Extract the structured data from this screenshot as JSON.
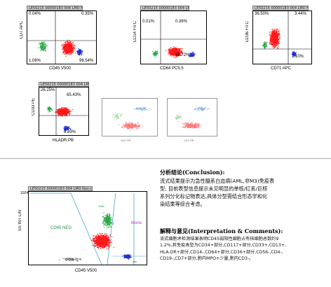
{
  "plots": {
    "p1": {
      "caption": "LE50215 00000183 004 LMD   Non-data",
      "xlabel": "CD45 V500",
      "ylabel": "CD7 APC",
      "q_tl": "0.04%",
      "q_tr": "0.35%",
      "q_bl": "1.08%",
      "q_br": "98.54%"
    },
    "p2": {
      "caption": "LE50215 00000183 004 LMD   Non-data",
      "xlabel": "CD64 PC5.5",
      "ylabel": "CD14 FITC",
      "q_tl": "0.01%",
      "q_tr": "0.36%",
      "q_bl": "",
      "q_br": "56.72%"
    },
    "p3": {
      "caption": "LE50215 00000183 004 LMD   Non-data",
      "xlabel": "CD71 APC",
      "ylabel": "CD36 FITC",
      "q_tl": "36.50%",
      "q_tr": "3.44%",
      "q_bl": "",
      "q_br": "1.10%"
    },
    "p4": {
      "caption": "LE50215 00000183 004 LMD   Non-data",
      "xlabel": "HLADR PB",
      "ylabel": "CD33 PE",
      "q_tl": "26.25%",
      "q_tr": "65.43%",
      "q_bl": "",
      "q_br": "6.89%"
    },
    "p5": {
      "xlabel": "CD7 PE"
    },
    "p6": {
      "xlabel": "CD7 PE"
    },
    "p7": {
      "caption": "LE50215 00000183 004 LMD   Non-data",
      "xlabel": "CD45 V500",
      "ylabel": "SS INT LIN",
      "tick": "1024",
      "gate_left": "CD45 NEG",
      "gate_mono": "Mono",
      "gate_gran": "Gran",
      "gate_lym": "lym"
    }
  },
  "analysis": {
    "heading": "分析结论(Conclusion):",
    "lines": [
      "流式结果提示为急性髓系白血病(AML,非M3)免疫表",
      "型; 目前表型信息提示未见明显的单核/红系/巨核",
      "系列分化标记物表达,具体分型需结合形态学和化",
      "染结果等综合考虑。"
    ]
  },
  "interpretation": {
    "heading": "解释与意见(Interpretation & Comments):",
    "lines": [
      "流式细胞术检测结果表明CD45弱阳性细胞占有核细胞总数约9",
      "1.2%,其免疫表型为CD34+部分,CD117+部分,CD33+,CD13+,",
      "HLA-DR+部分,CD14-,CD64+部分,CD36+部分,CD56-,CD4-,",
      "CD19-,CD7+部分,胞内MPO+少量,胞内CD3-。"
    ]
  },
  "colors": {
    "blast": "#ff1a1a",
    "lym": "#1f2fd8",
    "mono": "#2aa84a",
    "gate": "#4aa6c8"
  }
}
